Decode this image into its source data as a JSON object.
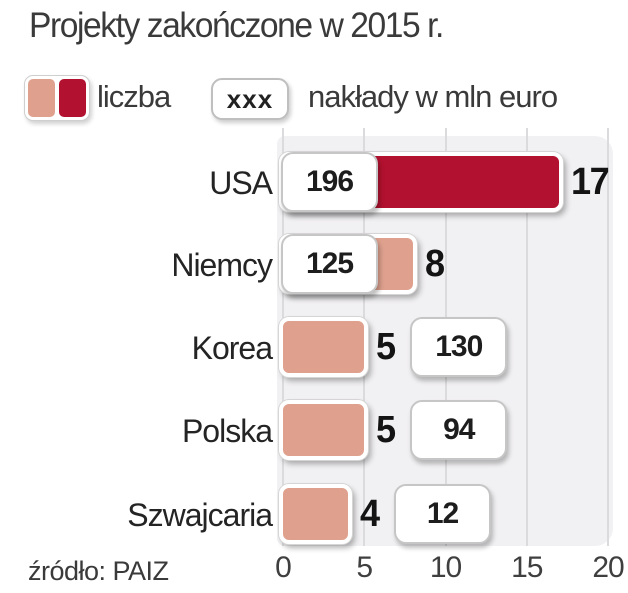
{
  "title": "Projekty zakończone w 2015 r.",
  "legend": {
    "swatch_label": "liczba",
    "box_sample": "xxx",
    "box_label": "nakłady w mln euro"
  },
  "source": "źródło: PAIZ",
  "colors": {
    "bar_primary": "#b2112f",
    "bar_secondary": "#dfa18e",
    "plot_bg": "#f1f0f2",
    "gridline": "#dbdadc"
  },
  "axis": {
    "min": 0,
    "max": 20,
    "ticks": [
      "0",
      "5",
      "10",
      "15",
      "20"
    ]
  },
  "rows": [
    {
      "label": "USA",
      "count": "17",
      "outlay": "196",
      "color": "primary",
      "box": "start"
    },
    {
      "label": "Niemcy",
      "count": "8",
      "outlay": "125",
      "color": "secondary",
      "box": "start"
    },
    {
      "label": "Korea",
      "count": "5",
      "outlay": "130",
      "color": "secondary",
      "box": "right"
    },
    {
      "label": "Polska",
      "count": "5",
      "outlay": "94",
      "color": "secondary",
      "box": "right"
    },
    {
      "label": "Szwajcaria",
      "count": "4",
      "outlay": "12",
      "color": "secondary",
      "box": "right"
    }
  ],
  "chart_data": {
    "type": "bar",
    "orientation": "horizontal",
    "title": "Projekty zakończone w 2015 r.",
    "categories": [
      "USA",
      "Niemcy",
      "Korea",
      "Polska",
      "Szwajcaria"
    ],
    "series": [
      {
        "name": "liczba",
        "values": [
          17,
          8,
          5,
          5,
          4
        ]
      },
      {
        "name": "nakłady w mln euro",
        "values": [
          196,
          125,
          130,
          94,
          12
        ]
      }
    ],
    "xlabel": "",
    "ylabel": "",
    "xlim": [
      0,
      20
    ],
    "xticks": [
      0,
      5,
      10,
      15,
      20
    ],
    "grid": "vertical",
    "legend_position": "top",
    "source": "źródło: PAIZ",
    "notes": "Bars show liczba (number of projects); boxed values show nakłady w mln euro (outlays in mln EUR). USA bar is dark red, others salmon."
  }
}
